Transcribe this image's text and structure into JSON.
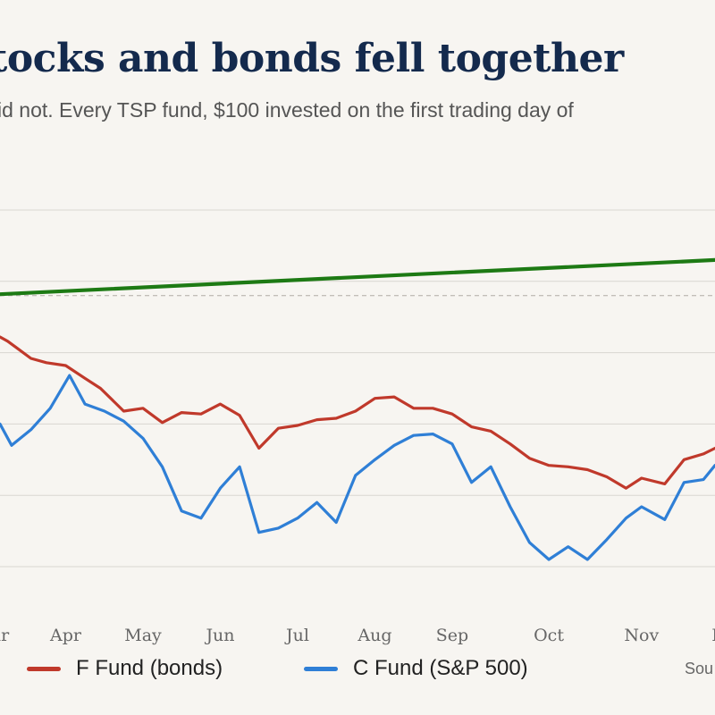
{
  "header": {
    "title": "tocks and bonds fell together",
    "subtitle": "id not. Every TSP fund, $100 invested on the first trading day of"
  },
  "legend": {
    "f_fund": "F Fund (bonds)",
    "c_fund": "C Fund (S&P 500)"
  },
  "source": "Sou",
  "colors": {
    "f_fund": "#c0392b",
    "c_fund": "#2f7fd6",
    "g_fund": "#1d7a14",
    "grid": "#d9d6d1",
    "background": "#f7f5f1"
  },
  "chart_data": {
    "type": "line",
    "title": "tocks and bonds fell together",
    "x_tick_labels": [
      "ar",
      "Apr",
      "May",
      "Jun",
      "Jul",
      "Aug",
      "Sep",
      "Oct",
      "Nov",
      "I"
    ],
    "x_tick_positions": [
      0.3,
      1.15,
      2.15,
      3.15,
      4.15,
      5.15,
      6.15,
      7.4,
      8.6,
      9.55
    ],
    "xlim": [
      0.3,
      9.55
    ],
    "ylim": [
      78,
      108
    ],
    "y_gridlines": [
      81,
      86,
      91,
      96,
      101,
      106
    ],
    "reference_line": 100,
    "grid": true,
    "legend_position": "bottom",
    "series": [
      {
        "name": "F Fund (bonds)",
        "key": "f_fund",
        "x": [
          0.3,
          0.4,
          0.5,
          0.7,
          0.9,
          1.15,
          1.4,
          1.6,
          1.9,
          2.15,
          2.4,
          2.65,
          2.9,
          3.15,
          3.4,
          3.65,
          3.9,
          4.15,
          4.4,
          4.65,
          4.9,
          5.15,
          5.4,
          5.65,
          5.9,
          6.15,
          6.4,
          6.65,
          6.9,
          7.15,
          7.4,
          7.65,
          7.9,
          8.15,
          8.4,
          8.6,
          8.9,
          9.15,
          9.4,
          9.55
        ],
        "values": [
          97.1,
          96.8,
          96.4,
          95.6,
          95.3,
          95.1,
          94.2,
          93.5,
          91.9,
          92.1,
          91.1,
          91.8,
          91.7,
          92.4,
          91.6,
          89.3,
          90.7,
          90.9,
          91.3,
          91.4,
          91.9,
          92.8,
          92.9,
          92.1,
          92.1,
          91.7,
          90.8,
          90.5,
          89.6,
          88.6,
          88.1,
          88.0,
          87.8,
          87.3,
          86.5,
          87.2,
          86.8,
          88.5,
          88.9,
          89.3
        ]
      },
      {
        "name": "C Fund (S&P 500)",
        "key": "c_fund",
        "x": [
          0.3,
          0.45,
          0.7,
          0.95,
          1.2,
          1.4,
          1.65,
          1.9,
          2.15,
          2.4,
          2.65,
          2.9,
          3.15,
          3.4,
          3.65,
          3.9,
          4.15,
          4.4,
          4.65,
          4.9,
          5.15,
          5.4,
          5.65,
          5.9,
          6.15,
          6.4,
          6.65,
          6.9,
          7.15,
          7.4,
          7.65,
          7.9,
          8.15,
          8.4,
          8.6,
          8.9,
          9.15,
          9.4,
          9.55
        ],
        "values": [
          91.0,
          89.5,
          90.6,
          92.1,
          94.4,
          92.4,
          91.9,
          91.2,
          90.0,
          88.0,
          84.9,
          84.4,
          86.5,
          88.0,
          83.4,
          83.7,
          84.4,
          85.5,
          84.1,
          87.4,
          88.5,
          89.5,
          90.2,
          90.3,
          89.6,
          86.9,
          88.0,
          85.2,
          82.7,
          81.5,
          82.4,
          81.5,
          82.9,
          84.4,
          85.2,
          84.3,
          86.9,
          87.1,
          88.1
        ]
      },
      {
        "name": "",
        "key": "g_fund",
        "x": [
          0.3,
          9.55
        ],
        "values": [
          100.1,
          102.5
        ]
      }
    ]
  }
}
